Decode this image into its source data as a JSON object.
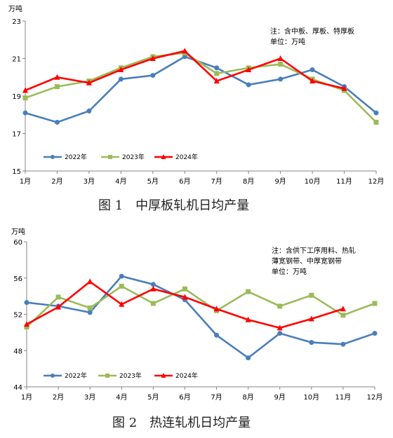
{
  "chart_data": [
    {
      "type": "line",
      "unit": "万吨",
      "categories": [
        "1月",
        "2月",
        "3月",
        "4月",
        "5月",
        "6月",
        "7月",
        "8月",
        "9月",
        "10月",
        "11月",
        "12月"
      ],
      "ylim": [
        15,
        23
      ],
      "yticks": [
        "15",
        "17",
        "19",
        "21",
        "23"
      ],
      "note": [
        "注：含中板、厚板、特厚板",
        "单位：万吨"
      ],
      "caption": "图 1　中厚板轧机日均产量",
      "series": [
        {
          "name": "2022年",
          "color": "#4a7ebb",
          "marker": "circle",
          "values": [
            18.1,
            17.6,
            18.2,
            19.9,
            20.1,
            21.1,
            20.5,
            19.6,
            19.9,
            20.4,
            19.5,
            18.1
          ]
        },
        {
          "name": "2023年",
          "color": "#9bbb59",
          "marker": "square",
          "values": [
            18.9,
            19.5,
            19.8,
            20.5,
            21.1,
            21.3,
            20.2,
            20.5,
            20.7,
            19.9,
            19.3,
            17.6
          ]
        },
        {
          "name": "2024年",
          "color": "#ff0000",
          "marker": "triangle",
          "values": [
            19.3,
            20.0,
            19.7,
            20.4,
            21.0,
            21.4,
            19.8,
            20.4,
            21.0,
            19.8,
            19.4,
            null
          ]
        }
      ],
      "grid": false,
      "legend": "bottom-left"
    },
    {
      "type": "line",
      "unit": "万吨",
      "categories": [
        "1月",
        "2月",
        "3月",
        "4月",
        "5月",
        "6月",
        "7月",
        "8月",
        "9月",
        "10月",
        "11月",
        "12月"
      ],
      "ylim": [
        44,
        60
      ],
      "yticks": [
        "44",
        "48",
        "52",
        "56",
        "60"
      ],
      "note": [
        "注：含供下工序用料、热轧",
        "薄宽钢带、中厚宽钢带",
        "单位：万吨"
      ],
      "caption": "图 2　热连轧机日均产量",
      "series": [
        {
          "name": "2022年",
          "color": "#4a7ebb",
          "marker": "circle",
          "values": [
            53.3,
            52.9,
            52.2,
            56.2,
            55.3,
            53.6,
            49.7,
            47.2,
            49.9,
            48.9,
            48.7,
            49.9
          ]
        },
        {
          "name": "2023年",
          "color": "#9bbb59",
          "marker": "square",
          "values": [
            50.6,
            53.9,
            52.7,
            55.1,
            53.2,
            54.8,
            52.4,
            54.5,
            52.9,
            54.1,
            51.9,
            53.2
          ]
        },
        {
          "name": "2024年",
          "color": "#ff0000",
          "marker": "triangle",
          "values": [
            50.9,
            52.8,
            55.6,
            53.1,
            54.8,
            53.9,
            52.6,
            51.4,
            50.5,
            51.5,
            52.6,
            null
          ]
        }
      ],
      "grid": false,
      "legend": "bottom-left"
    }
  ]
}
